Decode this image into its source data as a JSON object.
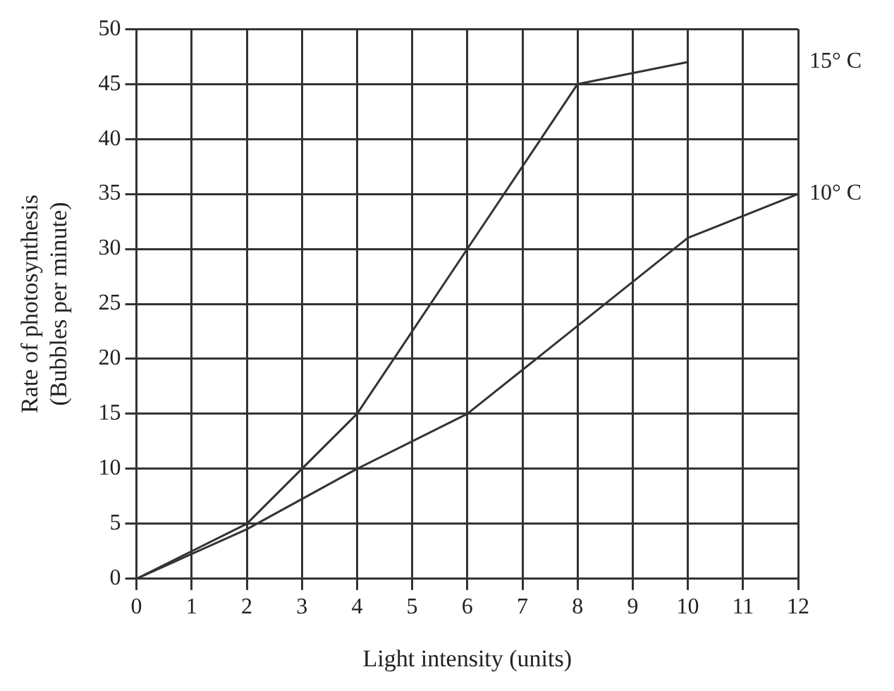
{
  "chart_data": {
    "type": "line",
    "xlabel": "Light intensity (units)",
    "ylabel": "Rate of photosynthesis\n(Bubbles per minute)",
    "xlim": [
      0,
      12
    ],
    "ylim": [
      0,
      50
    ],
    "xticks": [
      0,
      1,
      2,
      3,
      4,
      5,
      6,
      7,
      8,
      9,
      10,
      11,
      12
    ],
    "yticks": [
      0,
      5,
      10,
      15,
      20,
      25,
      30,
      35,
      40,
      45,
      50
    ],
    "grid": true,
    "legend": false,
    "marker": "none",
    "line_style": "solid",
    "series": [
      {
        "name": "15° C",
        "color": "#333333",
        "x": [
          0,
          2,
          4,
          6,
          8,
          10
        ],
        "values": [
          0,
          5,
          15,
          30,
          45,
          47
        ]
      },
      {
        "name": "10° C",
        "color": "#333333",
        "x": [
          0,
          2,
          4,
          6,
          8,
          10,
          12
        ],
        "values": [
          0,
          4.5,
          10,
          15,
          23,
          31,
          35
        ]
      }
    ]
  }
}
